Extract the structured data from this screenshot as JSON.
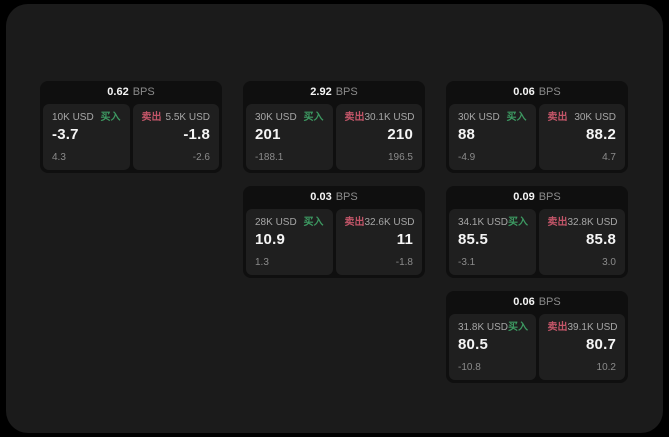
{
  "colors": {
    "buy_green": "#3d9a62",
    "sell_red": "#c25568",
    "page_bg": "#1b1b1b",
    "card_bg": "#0f0f0f",
    "panel_bg": "#1f1f1f",
    "value_white": "#f5f5f5",
    "muted_gray": "#8b8b8b"
  },
  "cards": [
    {
      "bps_value": "0.62",
      "bps_unit": "BPS",
      "buy": {
        "amount": "10K USD",
        "side_label": "买入",
        "value": "-3.7",
        "sub_value": "4.3"
      },
      "sell": {
        "side_label": "卖出",
        "amount": "5.5K USD",
        "value": "-1.8",
        "sub_value": "-2.6"
      }
    },
    {
      "bps_value": "2.92",
      "bps_unit": "BPS",
      "buy": {
        "amount": "30K USD",
        "side_label": "买入",
        "value": "201",
        "sub_value": "-188.1"
      },
      "sell": {
        "side_label": "卖出",
        "amount": "30.1K USD",
        "value": "210",
        "sub_value": "196.5"
      }
    },
    {
      "bps_value": "0.06",
      "bps_unit": "BPS",
      "buy": {
        "amount": "30K USD",
        "side_label": "买入",
        "value": "88",
        "sub_value": "-4.9"
      },
      "sell": {
        "side_label": "卖出",
        "amount": "30K USD",
        "value": "88.2",
        "sub_value": "4.7"
      }
    },
    {
      "bps_value": "0.03",
      "bps_unit": "BPS",
      "buy": {
        "amount": "28K USD",
        "side_label": "买入",
        "value": "10.9",
        "sub_value": "1.3"
      },
      "sell": {
        "side_label": "卖出",
        "amount": "32.6K USD",
        "value": "11",
        "sub_value": "-1.8"
      }
    },
    {
      "bps_value": "0.09",
      "bps_unit": "BPS",
      "buy": {
        "amount": "34.1K USD",
        "side_label": "买入",
        "value": "85.5",
        "sub_value": "-3.1"
      },
      "sell": {
        "side_label": "卖出",
        "amount": "32.8K USD",
        "value": "85.8",
        "sub_value": "3.0"
      }
    },
    {
      "bps_value": "0.06",
      "bps_unit": "BPS",
      "buy": {
        "amount": "31.8K USD",
        "side_label": "买入",
        "value": "80.5",
        "sub_value": "-10.8"
      },
      "sell": {
        "side_label": "卖出",
        "amount": "39.1K USD",
        "value": "80.7",
        "sub_value": "10.2"
      }
    }
  ]
}
